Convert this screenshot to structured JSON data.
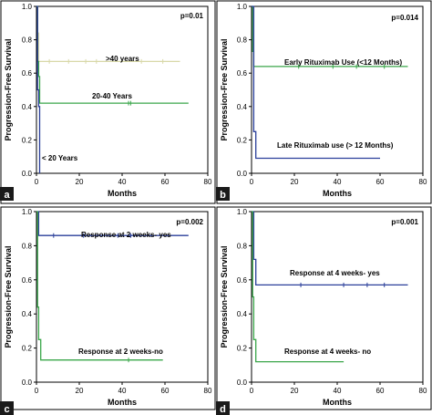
{
  "figure": {
    "panels": [
      {
        "letter": "a",
        "p_value": "p=0.01",
        "xlabel": "Months",
        "ylabel": "Progression-Free Survival",
        "x_ticks": [
          "0",
          "20",
          "40",
          "60",
          "80"
        ],
        "y_ticks": [
          "0.0",
          "0.2",
          "0.4",
          "0.6",
          "0.8",
          "1.0"
        ],
        "labels": [
          ">40 years",
          "20-40 Years",
          "< 20 Years"
        ]
      },
      {
        "letter": "b",
        "p_value": "p=0.014",
        "xlabel": "Months",
        "ylabel": "Progression-Free Survival",
        "x_ticks": [
          "0",
          "20",
          "40",
          "60",
          "80"
        ],
        "y_ticks": [
          "0.0",
          "0.2",
          "0.4",
          "0.6",
          "0.8",
          "1.0"
        ],
        "labels": [
          "Early Rituximab Use (<12 Months)",
          "Late Rituximab use (> 12 Months)"
        ]
      },
      {
        "letter": "c",
        "p_value": "p=0.002",
        "xlabel": "Months",
        "ylabel": "Progression-Free Survival",
        "x_ticks": [
          "0",
          "20",
          "40",
          "60",
          "80"
        ],
        "y_ticks": [
          "0.0",
          "0.2",
          "0.4",
          "0.6",
          "0.8",
          "1.0"
        ],
        "labels": [
          "Response at 2 weeks- yes",
          "Response at 2 weeks-no"
        ]
      },
      {
        "letter": "d",
        "p_value": "p=0.001",
        "xlabel": "Months",
        "ylabel": "Progression-Free Survival",
        "x_ticks": [
          "0",
          "20",
          "40",
          "60",
          "80"
        ],
        "y_ticks": [
          "0.0",
          "0.2",
          "0.4",
          "0.6",
          "0.8",
          "1.0"
        ],
        "labels": [
          "Response at 4 weeks- yes",
          "Response at 4 weeks- no"
        ]
      }
    ]
  },
  "chart_data": [
    {
      "type": "line",
      "step": true,
      "panel": "a",
      "xlabel": "Months",
      "ylabel": "Progression-Free Survival",
      "xlim": [
        0,
        80
      ],
      "ylim": [
        0,
        1
      ],
      "annotation": "p=0.01",
      "series": [
        {
          "name": ">40 years",
          "color": "#d8d8a8",
          "points": [
            [
              0,
              1.0
            ],
            [
              0.5,
              1.0
            ],
            [
              0.5,
              0.84
            ],
            [
              1.0,
              0.84
            ],
            [
              1.0,
              0.67
            ],
            [
              67,
              0.67
            ]
          ],
          "censored_x": [
            6,
            15,
            23,
            28,
            49,
            59
          ]
        },
        {
          "name": "20-40 Years",
          "color": "#3aa64a",
          "points": [
            [
              0,
              1.0
            ],
            [
              0.5,
              1.0
            ],
            [
              0.5,
              0.67
            ],
            [
              1.0,
              0.67
            ],
            [
              1.0,
              0.58
            ],
            [
              1.5,
              0.58
            ],
            [
              1.5,
              0.42
            ],
            [
              71,
              0.42
            ]
          ],
          "censored_x": [
            43,
            44
          ]
        },
        {
          "name": "< 20 Years",
          "color": "#2a3f9a",
          "points": [
            [
              0,
              1.0
            ],
            [
              0.5,
              1.0
            ],
            [
              0.5,
              0.5
            ],
            [
              1.0,
              0.5
            ],
            [
              1.0,
              0.4
            ],
            [
              1.5,
              0.4
            ],
            [
              1.5,
              0.0
            ]
          ],
          "censored_x": []
        }
      ]
    },
    {
      "type": "line",
      "step": true,
      "panel": "b",
      "xlabel": "Months",
      "ylabel": "Progression-Free Survival",
      "xlim": [
        0,
        80
      ],
      "ylim": [
        0,
        1
      ],
      "annotation": "p=0.014",
      "series": [
        {
          "name": "Early Rituximab Use (<12 Months)",
          "color": "#3aa64a",
          "points": [
            [
              0,
              1.0
            ],
            [
              0.5,
              1.0
            ],
            [
              0.5,
              0.73
            ],
            [
              1.0,
              0.73
            ],
            [
              1.0,
              0.64
            ],
            [
              73,
              0.64
            ]
          ],
          "censored_x": [
            22,
            38,
            49,
            62
          ]
        },
        {
          "name": "Late Rituximab use (> 12 Months)",
          "color": "#2a3f9a",
          "points": [
            [
              0,
              1.0
            ],
            [
              1.0,
              1.0
            ],
            [
              1.0,
              0.25
            ],
            [
              2.0,
              0.25
            ],
            [
              2.0,
              0.09
            ],
            [
              60,
              0.09
            ]
          ],
          "censored_x": []
        }
      ]
    },
    {
      "type": "line",
      "step": true,
      "panel": "c",
      "xlabel": "Months",
      "ylabel": "Progression-Free Survival",
      "xlim": [
        0,
        80
      ],
      "ylim": [
        0,
        1
      ],
      "annotation": "p=0.002",
      "series": [
        {
          "name": "Response at 2 weeks- yes",
          "color": "#2a3f9a",
          "points": [
            [
              0,
              1.0
            ],
            [
              1.0,
              1.0
            ],
            [
              1.0,
              0.86
            ],
            [
              71,
              0.86
            ]
          ],
          "censored_x": [
            8,
            22,
            38,
            44
          ]
        },
        {
          "name": "Response at 2 weeks-no",
          "color": "#3aa64a",
          "points": [
            [
              0,
              1.0
            ],
            [
              0.5,
              1.0
            ],
            [
              0.5,
              0.44
            ],
            [
              1.0,
              0.44
            ],
            [
              1.0,
              0.25
            ],
            [
              2.0,
              0.25
            ],
            [
              2.0,
              0.13
            ],
            [
              59,
              0.13
            ]
          ],
          "censored_x": [
            43
          ]
        }
      ]
    },
    {
      "type": "line",
      "step": true,
      "panel": "d",
      "xlabel": "Months",
      "ylabel": "Progression-Free Survival",
      "xlim": [
        0,
        80
      ],
      "ylim": [
        0,
        1
      ],
      "annotation": "p=0.001",
      "series": [
        {
          "name": "Response at 4 weeks- yes",
          "color": "#2a3f9a",
          "points": [
            [
              0,
              1.0
            ],
            [
              1.0,
              1.0
            ],
            [
              1.0,
              0.72
            ],
            [
              2.0,
              0.72
            ],
            [
              2.0,
              0.57
            ],
            [
              73,
              0.57
            ]
          ],
          "censored_x": [
            23,
            43,
            54,
            62
          ]
        },
        {
          "name": "Response at 4 weeks- no",
          "color": "#3aa64a",
          "points": [
            [
              0,
              1.0
            ],
            [
              0.5,
              1.0
            ],
            [
              0.5,
              0.5
            ],
            [
              1.0,
              0.5
            ],
            [
              1.0,
              0.25
            ],
            [
              2.0,
              0.25
            ],
            [
              2.0,
              0.12
            ],
            [
              43,
              0.12
            ]
          ],
          "censored_x": []
        }
      ]
    }
  ]
}
